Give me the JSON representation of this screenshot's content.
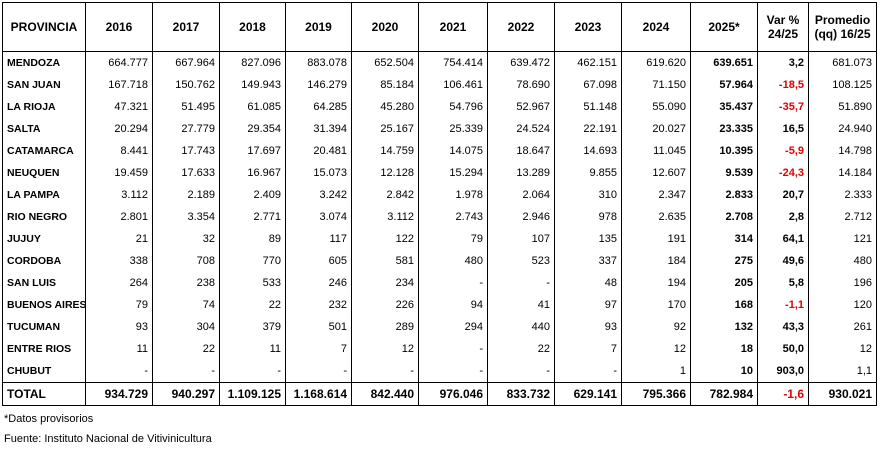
{
  "table": {
    "header": [
      "PROVINCIA",
      "2016",
      "2017",
      "2018",
      "2019",
      "2020",
      "2021",
      "2022",
      "2023",
      "2024",
      "2025*",
      [
        "Var %",
        "24/25"
      ],
      [
        "Promedio",
        "(qq) 16/25"
      ]
    ],
    "rows": [
      [
        "MENDOZA",
        "664.777",
        "667.964",
        "827.096",
        "883.078",
        "652.504",
        "754.414",
        "639.472",
        "462.151",
        "619.620",
        "639.651",
        "3,2",
        "681.073"
      ],
      [
        "SAN JUAN",
        "167.718",
        "150.762",
        "149.943",
        "146.279",
        "85.184",
        "106.461",
        "78.690",
        "67.098",
        "71.150",
        "57.964",
        "-18,5",
        "108.125"
      ],
      [
        "LA RIOJA",
        "47.321",
        "51.495",
        "61.085",
        "64.285",
        "45.280",
        "54.796",
        "52.967",
        "51.148",
        "55.090",
        "35.437",
        "-35,7",
        "51.890"
      ],
      [
        "SALTA",
        "20.294",
        "27.779",
        "29.354",
        "31.394",
        "25.167",
        "25.339",
        "24.524",
        "22.191",
        "20.027",
        "23.335",
        "16,5",
        "24.940"
      ],
      [
        "CATAMARCA",
        "8.441",
        "17.743",
        "17.697",
        "20.481",
        "14.759",
        "14.075",
        "18.647",
        "14.693",
        "11.045",
        "10.395",
        "-5,9",
        "14.798"
      ],
      [
        "NEUQUEN",
        "19.459",
        "17.633",
        "16.967",
        "15.073",
        "12.128",
        "15.294",
        "13.289",
        "9.855",
        "12.607",
        "9.539",
        "-24,3",
        "14.184"
      ],
      [
        "LA PAMPA",
        "3.112",
        "2.189",
        "2.409",
        "3.242",
        "2.842",
        "1.978",
        "2.064",
        "310",
        "2.347",
        "2.833",
        "20,7",
        "2.333"
      ],
      [
        "RIO NEGRO",
        "2.801",
        "3.354",
        "2.771",
        "3.074",
        "3.112",
        "2.743",
        "2.946",
        "978",
        "2.635",
        "2.708",
        "2,8",
        "2.712"
      ],
      [
        "JUJUY",
        "21",
        "32",
        "89",
        "117",
        "122",
        "79",
        "107",
        "135",
        "191",
        "314",
        "64,1",
        "121"
      ],
      [
        "CORDOBA",
        "338",
        "708",
        "770",
        "605",
        "581",
        "480",
        "523",
        "337",
        "184",
        "275",
        "49,6",
        "480"
      ],
      [
        "SAN LUIS",
        "264",
        "238",
        "533",
        "246",
        "234",
        "-",
        "-",
        "48",
        "194",
        "205",
        "5,8",
        "196"
      ],
      [
        "BUENOS AIRES",
        "79",
        "74",
        "22",
        "232",
        "226",
        "94",
        "41",
        "97",
        "170",
        "168",
        "-1,1",
        "120"
      ],
      [
        "TUCUMAN",
        "93",
        "304",
        "379",
        "501",
        "289",
        "294",
        "440",
        "93",
        "92",
        "132",
        "43,3",
        "261"
      ],
      [
        "ENTRE RIOS",
        "11",
        "22",
        "11",
        "7",
        "12",
        "-",
        "22",
        "7",
        "12",
        "18",
        "50,0",
        "12"
      ],
      [
        "CHUBUT",
        "-",
        "-",
        "-",
        "-",
        "-",
        "-",
        "-",
        "-",
        "1",
        "10",
        "903,0",
        "1,1"
      ]
    ],
    "total": [
      "TOTAL",
      "934.729",
      "940.297",
      "1.109.125",
      "1.168.614",
      "842.440",
      "976.046",
      "833.732",
      "629.141",
      "795.366",
      "782.984",
      "-1,6",
      "930.021"
    ]
  },
  "notes": [
    "*Datos provisorios",
    "Fuente: Instituto Nacional de Vitivinicultura"
  ]
}
